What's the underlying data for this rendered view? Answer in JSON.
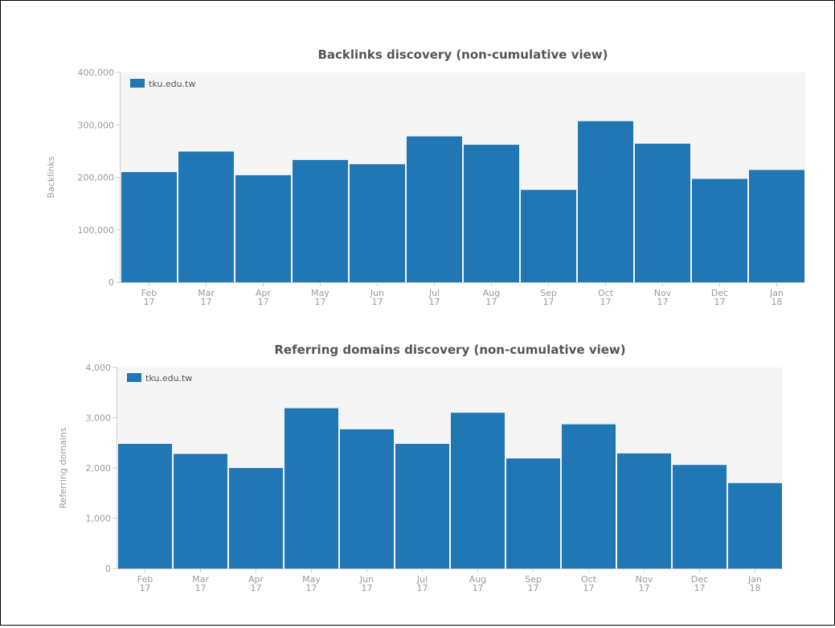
{
  "chart_data": [
    {
      "type": "bar",
      "title": "Backlinks discovery (non-cumulative view)",
      "xlabel": "",
      "ylabel": "Backlinks",
      "ylim": [
        0,
        400000
      ],
      "yticks": [
        "0",
        "100,000",
        "200,000",
        "300,000",
        "400,000"
      ],
      "ytick_values": [
        0,
        100000,
        200000,
        300000,
        400000
      ],
      "categories": [
        [
          "Feb",
          "17"
        ],
        [
          "Mar",
          "17"
        ],
        [
          "Apr",
          "17"
        ],
        [
          "May",
          "17"
        ],
        [
          "Jun",
          "17"
        ],
        [
          "Jul",
          "17"
        ],
        [
          "Aug",
          "17"
        ],
        [
          "Sep",
          "17"
        ],
        [
          "Oct",
          "17"
        ],
        [
          "Nov",
          "17"
        ],
        [
          "Dec",
          "17"
        ],
        [
          "Jan",
          "18"
        ]
      ],
      "series": [
        {
          "name": "tku.edu.tw",
          "color": "#2077b4",
          "values": [
            210000,
            249000,
            204000,
            233000,
            225000,
            278000,
            262000,
            176000,
            307000,
            264000,
            197000,
            214000
          ]
        }
      ],
      "legend": "top-left",
      "plot_background": "#f5f5f5"
    },
    {
      "type": "bar",
      "title": "Referring domains discovery (non-cumulative view)",
      "xlabel": "",
      "ylabel": "Referring domains",
      "ylim": [
        0,
        4000
      ],
      "yticks": [
        "0",
        "1,000",
        "2,000",
        "3,000",
        "4,000"
      ],
      "ytick_values": [
        0,
        1000,
        2000,
        3000,
        4000
      ],
      "categories": [
        [
          "Feb",
          "17"
        ],
        [
          "Mar",
          "17"
        ],
        [
          "Apr",
          "17"
        ],
        [
          "May",
          "17"
        ],
        [
          "Jun",
          "17"
        ],
        [
          "Jul",
          "17"
        ],
        [
          "Aug",
          "17"
        ],
        [
          "Sep",
          "17"
        ],
        [
          "Oct",
          "17"
        ],
        [
          "Nov",
          "17"
        ],
        [
          "Dec",
          "17"
        ],
        [
          "Jan",
          "18"
        ]
      ],
      "series": [
        {
          "name": "tku.edu.tw",
          "color": "#2077b4",
          "values": [
            2480,
            2280,
            2000,
            3190,
            2770,
            2480,
            3100,
            2190,
            2870,
            2290,
            2060,
            1700
          ]
        }
      ],
      "legend": "top-left",
      "plot_background": "#f5f5f5"
    }
  ]
}
